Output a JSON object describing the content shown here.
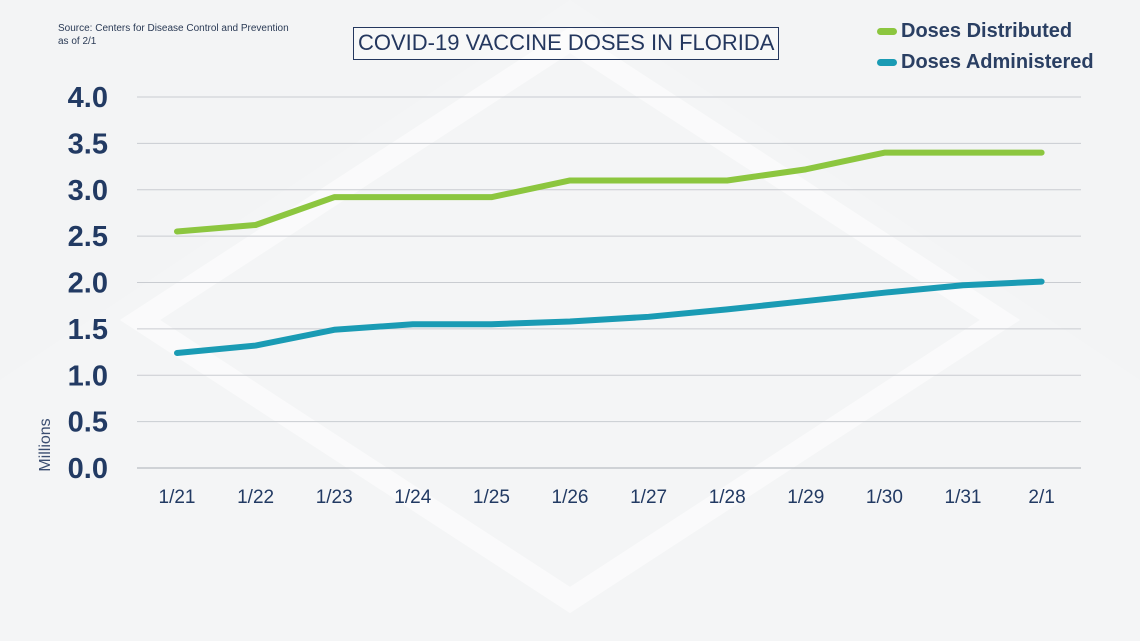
{
  "source": {
    "line1": "Source: Centers for Disease Control and Prevention",
    "line2": "as of 2/1"
  },
  "colors": {
    "distributed": "#8cc63f",
    "administered": "#1a9bb4",
    "text": "#223a63",
    "grid": "#c9ccd1"
  },
  "chart_data": {
    "type": "line",
    "title": "COVID-19 VACCINE DOSES IN FLORIDA",
    "ylabel": "Millions",
    "xlabel": "",
    "categories": [
      "1/21",
      "1/22",
      "1/23",
      "1/24",
      "1/25",
      "1/26",
      "1/27",
      "1/28",
      "1/29",
      "1/30",
      "1/31",
      "2/1"
    ],
    "yticks": [
      "0.0",
      "0.5",
      "1.0",
      "1.5",
      "2.0",
      "2.5",
      "3.0",
      "3.5",
      "4.0"
    ],
    "ylim": [
      0,
      4
    ],
    "grid": true,
    "legend_position": "top-right",
    "series": [
      {
        "name": "Doses Distributed",
        "values": [
          2.55,
          2.62,
          2.92,
          2.92,
          2.92,
          3.1,
          3.1,
          3.1,
          3.22,
          3.4,
          3.4,
          3.4
        ]
      },
      {
        "name": "Doses Administered",
        "values": [
          1.24,
          1.32,
          1.49,
          1.55,
          1.55,
          1.58,
          1.63,
          1.71,
          1.8,
          1.89,
          1.97,
          2.01
        ]
      }
    ]
  }
}
